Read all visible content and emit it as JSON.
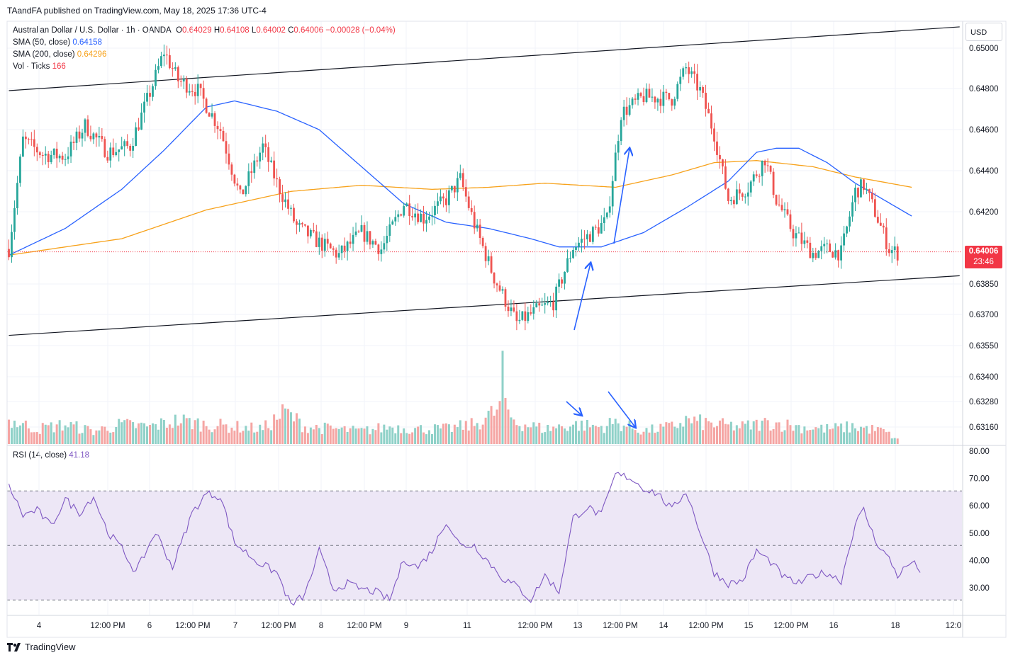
{
  "publisher": "TAandFA published on TradingView.com, May 18, 2025 17:36 UTC-4",
  "legend": {
    "symbol": "Australian Dollar / U.S. Dollar · 1h · OANDA",
    "o_label": "O",
    "o": "0.64029",
    "h_label": "H",
    "h": "0.64108",
    "l_label": "L",
    "l": "0.64002",
    "c_label": "C",
    "c": "0.64006",
    "change": "−0.00028 (−0.04%)",
    "sma50_label": "SMA (50, close)",
    "sma50": "0.64158",
    "sma200_label": "SMA (200, close)",
    "sma200": "0.64296",
    "vol_label": "Vol · Ticks",
    "vol": "166"
  },
  "rsi_legend": {
    "label": "RSI (14, close)",
    "value": "41.18"
  },
  "currency": "USD",
  "last_price": {
    "price": "0.64006",
    "countdown": "23:46"
  },
  "brand": "TradingView",
  "colors": {
    "up": "#26a69a",
    "down": "#ef5350",
    "sma50": "#2962ff",
    "sma200": "#f7a21b",
    "rsi": "#7e57c2",
    "rsi_band": "#ede7f6",
    "vol_up": "#8fd1c8",
    "vol_down": "#f5a5a3"
  },
  "chart_data": [
    {
      "type": "candlestick",
      "price_axis_ticks": [
        "0.65000",
        "0.64800",
        "0.64600",
        "0.64400",
        "0.64200",
        "0.63850",
        "0.63700",
        "0.63550",
        "0.63400",
        "0.63280",
        "0.63160"
      ],
      "time_axis_ticks": [
        "4",
        "12:00 PM",
        "6",
        "12:00 PM",
        "7",
        "12:00 PM",
        "8",
        "12:00 PM",
        "9",
        "11",
        "12:00 PM",
        "13",
        "12:00 PM",
        "14",
        "12:00 PM",
        "15",
        "12:00 PM",
        "16",
        "18",
        "12:0"
      ],
      "price_anchors": [
        [
          0,
          0.6402
        ],
        [
          5,
          0.6455
        ],
        [
          12,
          0.6448
        ],
        [
          20,
          0.6447
        ],
        [
          27,
          0.6462
        ],
        [
          35,
          0.6449
        ],
        [
          43,
          0.6452
        ],
        [
          50,
          0.6478
        ],
        [
          55,
          0.6498
        ],
        [
          60,
          0.6484
        ],
        [
          67,
          0.6479
        ],
        [
          75,
          0.646
        ],
        [
          82,
          0.6427
        ],
        [
          90,
          0.6452
        ],
        [
          95,
          0.6434
        ],
        [
          102,
          0.6413
        ],
        [
          110,
          0.6405
        ],
        [
          117,
          0.6399
        ],
        [
          125,
          0.641
        ],
        [
          132,
          0.6402
        ],
        [
          140,
          0.6424
        ],
        [
          147,
          0.6417
        ],
        [
          155,
          0.6426
        ],
        [
          160,
          0.6436
        ],
        [
          165,
          0.6414
        ],
        [
          172,
          0.6388
        ],
        [
          180,
          0.6366
        ],
        [
          187,
          0.6372
        ],
        [
          193,
          0.6376
        ],
        [
          200,
          0.6403
        ],
        [
          207,
          0.641
        ],
        [
          212,
          0.6416
        ],
        [
          217,
          0.6468
        ],
        [
          225,
          0.6476
        ],
        [
          235,
          0.6475
        ],
        [
          240,
          0.649
        ],
        [
          245,
          0.6479
        ],
        [
          250,
          0.6458
        ],
        [
          255,
          0.6426
        ],
        [
          262,
          0.6432
        ],
        [
          268,
          0.6446
        ],
        [
          272,
          0.6426
        ],
        [
          278,
          0.641
        ],
        [
          285,
          0.64
        ],
        [
          290,
          0.6402
        ],
        [
          295,
          0.64
        ],
        [
          300,
          0.643
        ],
        [
          303,
          0.6433
        ],
        [
          307,
          0.642
        ],
        [
          312,
          0.6402
        ],
        [
          315,
          0.64
        ]
      ],
      "sma50_anchors": [
        [
          0,
          0.6399
        ],
        [
          20,
          0.6412
        ],
        [
          40,
          0.6431
        ],
        [
          55,
          0.645
        ],
        [
          70,
          0.6471
        ],
        [
          80,
          0.6474
        ],
        [
          95,
          0.6469
        ],
        [
          110,
          0.646
        ],
        [
          125,
          0.6442
        ],
        [
          140,
          0.6424
        ],
        [
          155,
          0.6415
        ],
        [
          170,
          0.6412
        ],
        [
          185,
          0.6407
        ],
        [
          195,
          0.6403
        ],
        [
          210,
          0.6403
        ],
        [
          225,
          0.641
        ],
        [
          240,
          0.6422
        ],
        [
          255,
          0.6435
        ],
        [
          265,
          0.6449
        ],
        [
          272,
          0.6451
        ],
        [
          280,
          0.6451
        ],
        [
          290,
          0.6444
        ],
        [
          300,
          0.6434
        ],
        [
          310,
          0.6426
        ],
        [
          320,
          0.6418
        ]
      ],
      "sma200_anchors": [
        [
          0,
          0.6399
        ],
        [
          40,
          0.6407
        ],
        [
          70,
          0.6421
        ],
        [
          100,
          0.643
        ],
        [
          125,
          0.6433
        ],
        [
          150,
          0.6431
        ],
        [
          170,
          0.6432
        ],
        [
          190,
          0.6434
        ],
        [
          215,
          0.6432
        ],
        [
          235,
          0.6438
        ],
        [
          250,
          0.6444
        ],
        [
          265,
          0.6445
        ],
        [
          285,
          0.6442
        ],
        [
          300,
          0.6437
        ],
        [
          320,
          0.6432
        ]
      ],
      "channel_upper": [
        [
          0,
          0.6479
        ],
        [
          337,
          0.651
        ]
      ],
      "channel_lower": [
        [
          0,
          0.636
        ],
        [
          337,
          0.6389
        ]
      ],
      "last_price": 0.64006
    },
    {
      "type": "bar",
      "title": "Vol · Ticks",
      "volume_anchors": [
        [
          0,
          0.55
        ],
        [
          10,
          0.35
        ],
        [
          20,
          0.45
        ],
        [
          30,
          0.3
        ],
        [
          40,
          0.45
        ],
        [
          50,
          0.4
        ],
        [
          60,
          0.55
        ],
        [
          70,
          0.45
        ],
        [
          80,
          0.4
        ],
        [
          90,
          0.35
        ],
        [
          98,
          0.75
        ],
        [
          105,
          0.4
        ],
        [
          115,
          0.35
        ],
        [
          125,
          0.3
        ],
        [
          135,
          0.4
        ],
        [
          145,
          0.35
        ],
        [
          155,
          0.35
        ],
        [
          165,
          0.45
        ],
        [
          175,
          0.85
        ],
        [
          180,
          0.5
        ],
        [
          190,
          0.35
        ],
        [
          200,
          0.45
        ],
        [
          210,
          0.4
        ],
        [
          215,
          0.5
        ],
        [
          225,
          0.3
        ],
        [
          235,
          0.4
        ],
        [
          240,
          0.55
        ],
        [
          250,
          0.45
        ],
        [
          260,
          0.4
        ],
        [
          270,
          0.5
        ],
        [
          280,
          0.4
        ],
        [
          290,
          0.35
        ],
        [
          300,
          0.4
        ],
        [
          310,
          0.3
        ],
        [
          315,
          0.1
        ]
      ],
      "spike_index": 175
    },
    {
      "type": "line",
      "title": "RSI (14, close)",
      "y_ticks": [
        "80.00",
        "70.00",
        "60.00",
        "50.00",
        "40.00",
        "30.00"
      ],
      "ylim": [
        22,
        82
      ],
      "levels": [
        70,
        50,
        30
      ],
      "rsi_anchors": [
        [
          0,
          72
        ],
        [
          5,
          61
        ],
        [
          10,
          63
        ],
        [
          15,
          57
        ],
        [
          20,
          67
        ],
        [
          25,
          62
        ],
        [
          30,
          68
        ],
        [
          35,
          55
        ],
        [
          40,
          49
        ],
        [
          45,
          40
        ],
        [
          52,
          55
        ],
        [
          58,
          42
        ],
        [
          65,
          62
        ],
        [
          70,
          69
        ],
        [
          75,
          68
        ],
        [
          80,
          51
        ],
        [
          88,
          44
        ],
        [
          95,
          40
        ],
        [
          100,
          28
        ],
        [
          105,
          32
        ],
        [
          110,
          48
        ],
        [
          115,
          34
        ],
        [
          120,
          36
        ],
        [
          125,
          34
        ],
        [
          130,
          33
        ],
        [
          135,
          30
        ],
        [
          140,
          45
        ],
        [
          145,
          42
        ],
        [
          150,
          48
        ],
        [
          155,
          59
        ],
        [
          160,
          50
        ],
        [
          165,
          50
        ],
        [
          170,
          44
        ],
        [
          175,
          38
        ],
        [
          180,
          35
        ],
        [
          185,
          30
        ],
        [
          190,
          39
        ],
        [
          195,
          33
        ],
        [
          200,
          60
        ],
        [
          205,
          64
        ],
        [
          210,
          61
        ],
        [
          215,
          76
        ],
        [
          220,
          75
        ],
        [
          225,
          71
        ],
        [
          230,
          69
        ],
        [
          235,
          63
        ],
        [
          240,
          70
        ],
        [
          245,
          55
        ],
        [
          250,
          40
        ],
        [
          255,
          36
        ],
        [
          260,
          37
        ],
        [
          265,
          48
        ],
        [
          270,
          44
        ],
        [
          275,
          38
        ],
        [
          280,
          36
        ],
        [
          285,
          39
        ],
        [
          290,
          40
        ],
        [
          295,
          37
        ],
        [
          300,
          58
        ],
        [
          303,
          63
        ],
        [
          307,
          52
        ],
        [
          312,
          45
        ],
        [
          315,
          39
        ],
        [
          320,
          44
        ],
        [
          323,
          41
        ]
      ]
    }
  ]
}
